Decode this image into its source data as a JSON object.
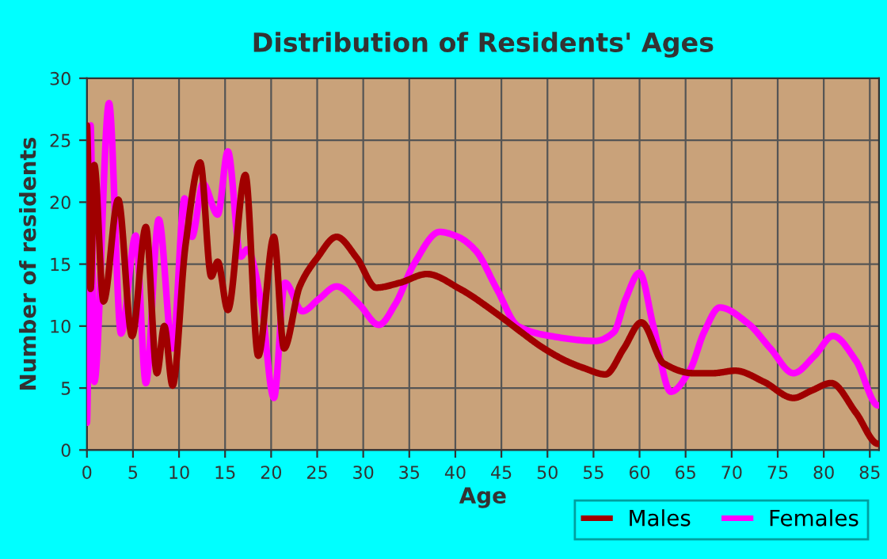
{
  "chart_data": {
    "type": "line",
    "title": "Distribution of Residents' Ages",
    "xlabel": "Age",
    "ylabel": "Number of residents",
    "xlim": [
      0,
      86
    ],
    "xticks": [
      0,
      5,
      10,
      15,
      20,
      25,
      30,
      35,
      40,
      45,
      50,
      55,
      60,
      65,
      70,
      75,
      80,
      85
    ],
    "ylim": [
      0,
      30
    ],
    "yticks": [
      0,
      5,
      10,
      15,
      20,
      25,
      30
    ],
    "grid": true,
    "legend": "bottom",
    "marker": "none",
    "line_style": "solid",
    "series": [
      {
        "name": "Males",
        "color": "#a00000",
        "x": [
          0,
          0.4,
          0.8,
          1.8,
          3.4,
          4.9,
          6.4,
          7.6,
          8.4,
          9.3,
          10.7,
          12.3,
          13.5,
          14.2,
          15.3,
          17.2,
          18.6,
          20.3,
          21.4,
          23.1,
          25,
          27.1,
          29.3,
          31.4,
          34,
          36.9,
          40.5,
          44.5,
          47,
          49.4,
          52,
          54,
          56.3,
          58.3,
          60.2,
          62.6,
          65.8,
          68,
          70.4,
          73.5,
          76.7,
          78.7,
          80.8,
          83.5,
          85.9
        ],
        "values": [
          26.2,
          13,
          23,
          12,
          20.2,
          9.2,
          18,
          6.2,
          10,
          5.2,
          16.5,
          23.2,
          14,
          15.2,
          11.3,
          22.2,
          7.6,
          17.2,
          8.2,
          13.2,
          15.5,
          17.2,
          15.5,
          13.1,
          13.5,
          14.2,
          13,
          11,
          9.6,
          8.3,
          7.2,
          6.6,
          6.1,
          8.2,
          10.3,
          7,
          6.2,
          6.2,
          6.4,
          5.5,
          4.2,
          4.8,
          5.4,
          3,
          0.5
        ]
      },
      {
        "name": "Females",
        "color": "#ff00ff",
        "x": [
          0,
          0.4,
          0.8,
          2.4,
          3.7,
          5.3,
          6.4,
          7.8,
          9.3,
          10.6,
          11.4,
          12.6,
          14.2,
          15.3,
          16.7,
          17.4,
          18.9,
          20.3,
          21.5,
          23.4,
          25.2,
          27.1,
          29.5,
          31.7,
          33.5,
          35.5,
          38.3,
          40.3,
          42.2,
          44.5,
          46.8,
          50.3,
          55.2,
          57.2,
          58.5,
          60,
          61.5,
          63.4,
          65.5,
          67,
          68.7,
          71.8,
          74.2,
          76.7,
          79,
          81,
          83.5,
          85.9
        ],
        "values": [
          2.2,
          26.2,
          5.5,
          28,
          9.4,
          17.3,
          5.4,
          18.6,
          8.2,
          20.3,
          17.2,
          21.5,
          19,
          24.1,
          15.6,
          16.2,
          12,
          4.2,
          13.5,
          11.2,
          12.2,
          13.2,
          11.8,
          10.1,
          11.8,
          15,
          17.6,
          17.2,
          16.1,
          13,
          10,
          9.2,
          8.8,
          9.5,
          12.2,
          14.3,
          10,
          4.7,
          6.5,
          9.5,
          11.5,
          10.2,
          8.2,
          6.2,
          7.6,
          9.2,
          7.2,
          3.6
        ]
      }
    ]
  }
}
